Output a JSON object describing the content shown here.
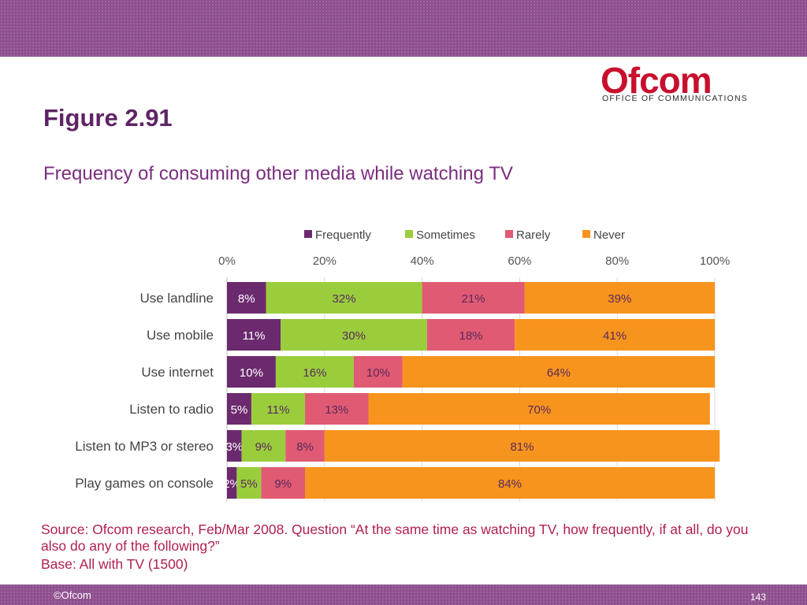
{
  "header": {
    "logo_text": "Ofcom",
    "logo_tagline": "OFFICE OF COMMUNICATIONS",
    "figure_title": "Figure 2.91",
    "subtitle": "Frequency of consuming other media while watching TV"
  },
  "footer": {
    "source": "Source: Ofcom research, Feb/Mar 2008. Question “At the same time as watching TV, how frequently, if at all, do you also do any of the following?”",
    "base": "Base: All with TV (1500)",
    "copyright": "©Ofcom",
    "page_number": "143"
  },
  "colors": {
    "Frequently": "#6b2a6e",
    "Sometimes": "#9acd3c",
    "Rarely": "#e05a73",
    "Never": "#f7941d"
  },
  "chart_data": {
    "type": "bar",
    "orientation": "horizontal",
    "stacked": true,
    "categories": [
      "Use landline",
      "Use mobile",
      "Use internet",
      "Listen to radio",
      "Listen to MP3 or stereo",
      "Play games on console"
    ],
    "series": [
      {
        "name": "Frequently",
        "values": [
          8,
          11,
          10,
          5,
          3,
          2
        ]
      },
      {
        "name": "Sometimes",
        "values": [
          32,
          30,
          16,
          11,
          9,
          5
        ]
      },
      {
        "name": "Rarely",
        "values": [
          21,
          18,
          10,
          13,
          8,
          9
        ]
      },
      {
        "name": "Never",
        "values": [
          39,
          41,
          64,
          70,
          81,
          84
        ]
      }
    ],
    "x_ticks": [
      "0%",
      "20%",
      "40%",
      "60%",
      "80%",
      "100%"
    ],
    "xlim": [
      0,
      100
    ],
    "value_suffix": "%",
    "legend_position": "top",
    "axis_position": "top",
    "grid": true
  }
}
